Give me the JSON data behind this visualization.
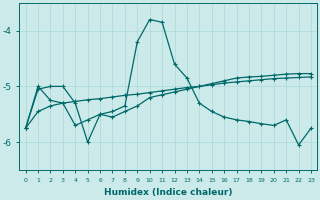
{
  "xlabel": "Humidex (Indice chaleur)",
  "xlim": [
    -0.5,
    23.5
  ],
  "ylim": [
    -6.5,
    -3.5
  ],
  "yticks": [
    -6,
    -5,
    -4
  ],
  "xticks": [
    0,
    1,
    2,
    3,
    4,
    5,
    6,
    7,
    8,
    9,
    10,
    11,
    12,
    13,
    14,
    15,
    16,
    17,
    18,
    19,
    20,
    21,
    22,
    23
  ],
  "background_color": "#cceaea",
  "grid_color": "#aad8d8",
  "line_color": "#006868",
  "line1_x": [
    0,
    1,
    2,
    3,
    4,
    5,
    6,
    7,
    8,
    9,
    10,
    11,
    12,
    13,
    14,
    15,
    16,
    17,
    18,
    19,
    20,
    21,
    22,
    23
  ],
  "line1_y": [
    -5.75,
    -5.05,
    -5.0,
    -5.0,
    -5.3,
    -6.0,
    -5.5,
    -5.45,
    -5.35,
    -4.2,
    -3.8,
    -3.85,
    -4.6,
    -4.85,
    -5.3,
    -5.45,
    -5.55,
    -5.6,
    -5.63,
    -5.67,
    -5.7,
    -5.6,
    -6.05,
    -5.75
  ],
  "line2_x": [
    0,
    1,
    2,
    3,
    4,
    5,
    6,
    7,
    8,
    9,
    10,
    11,
    12,
    13,
    14,
    15,
    16,
    17,
    18,
    19,
    20,
    21,
    22,
    23
  ],
  "line2_y": [
    -5.75,
    -5.0,
    -5.25,
    -5.3,
    -5.7,
    -5.6,
    -5.5,
    -5.55,
    -5.45,
    -5.35,
    -5.2,
    -5.15,
    -5.1,
    -5.05,
    -5.0,
    -4.95,
    -4.9,
    -4.85,
    -4.83,
    -4.82,
    -4.8,
    -4.78,
    -4.77,
    -4.77
  ],
  "line3_x": [
    0,
    1,
    2,
    3,
    4,
    5,
    6,
    7,
    8,
    9,
    10,
    11,
    12,
    13,
    14,
    15,
    16,
    17,
    18,
    19,
    20,
    21,
    22,
    23
  ],
  "line3_y": [
    -5.75,
    -5.45,
    -5.35,
    -5.3,
    -5.27,
    -5.24,
    -5.22,
    -5.19,
    -5.16,
    -5.14,
    -5.11,
    -5.08,
    -5.05,
    -5.02,
    -5.0,
    -4.97,
    -4.94,
    -4.92,
    -4.9,
    -4.88,
    -4.86,
    -4.85,
    -4.84,
    -4.83
  ],
  "markersize": 3,
  "linewidth": 0.9
}
